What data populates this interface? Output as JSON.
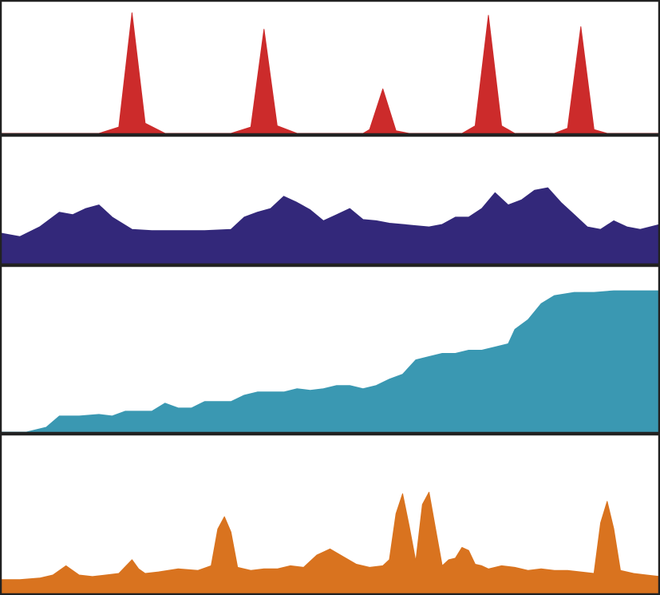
{
  "chart_data": [
    {
      "type": "area",
      "color": "#cc2b2b",
      "x": [
        0,
        5,
        10,
        15,
        18,
        20,
        22,
        25,
        28,
        30,
        35,
        38,
        40,
        42,
        45,
        48,
        50,
        55,
        56,
        58,
        60,
        62,
        65,
        70,
        72,
        74,
        76,
        78,
        80,
        84,
        86,
        88,
        90,
        92,
        95,
        100
      ],
      "y": [
        0,
        0,
        0,
        0,
        5,
        95,
        8,
        0,
        0,
        0,
        0,
        5,
        82,
        6,
        0,
        0,
        0,
        0,
        3,
        35,
        2,
        0,
        0,
        0,
        6,
        93,
        6,
        0,
        0,
        0,
        4,
        84,
        3,
        0,
        0,
        0
      ],
      "ylim": [
        0,
        100
      ]
    },
    {
      "type": "area",
      "color": "#33287a",
      "x": [
        0,
        3,
        6,
        9,
        11,
        13,
        15,
        17,
        20,
        23,
        27,
        31,
        35,
        37,
        39,
        41,
        43,
        45,
        47,
        49,
        51,
        53,
        55,
        57,
        59,
        61,
        63,
        65,
        67,
        69,
        71,
        73,
        75,
        77,
        79,
        81,
        83,
        85,
        87,
        89,
        91,
        93,
        95,
        97,
        100
      ],
      "y": [
        25,
        22,
        30,
        42,
        40,
        45,
        48,
        38,
        28,
        27,
        27,
        27,
        28,
        38,
        42,
        45,
        55,
        50,
        44,
        35,
        40,
        45,
        36,
        35,
        33,
        32,
        31,
        30,
        32,
        38,
        38,
        45,
        58,
        48,
        52,
        60,
        62,
        50,
        40,
        30,
        28,
        35,
        30,
        28,
        32
      ],
      "ylim": [
        0,
        100
      ]
    },
    {
      "type": "area",
      "color": "#3a98b2",
      "x": [
        0,
        4,
        7,
        9,
        12,
        15,
        17,
        19,
        21,
        23,
        25,
        27,
        29,
        31,
        33,
        35,
        37,
        39,
        41,
        43,
        45,
        47,
        49,
        51,
        53,
        55,
        57,
        59,
        61,
        63,
        65,
        67,
        69,
        71,
        73,
        75,
        77,
        78,
        80,
        82,
        84,
        87,
        90,
        93,
        96,
        100
      ],
      "y": [
        0,
        0,
        3,
        10,
        10,
        11,
        10,
        13,
        13,
        13,
        18,
        15,
        15,
        19,
        19,
        19,
        23,
        25,
        25,
        25,
        27,
        26,
        27,
        29,
        29,
        27,
        29,
        33,
        36,
        45,
        47,
        49,
        49,
        51,
        51,
        53,
        55,
        64,
        70,
        80,
        85,
        87,
        87,
        88,
        88,
        88
      ],
      "ylim": [
        0,
        100
      ]
    },
    {
      "type": "area",
      "color": "#d9731f",
      "x": [
        0,
        3,
        6,
        8,
        10,
        12,
        14,
        16,
        18,
        20,
        21,
        22,
        24,
        27,
        30,
        32,
        33,
        34,
        35,
        36,
        38,
        40,
        42,
        44,
        46,
        48,
        49,
        50,
        52,
        54,
        56,
        58,
        59,
        60,
        61,
        62,
        63,
        64,
        65,
        66,
        67,
        68,
        69,
        70,
        71,
        72,
        73,
        74,
        76,
        78,
        80,
        82,
        84,
        86,
        88,
        90,
        91,
        92,
        93,
        94,
        96,
        98,
        100
      ],
      "y": [
        9,
        9,
        10,
        12,
        18,
        12,
        11,
        12,
        13,
        22,
        16,
        13,
        14,
        16,
        15,
        18,
        42,
        50,
        40,
        17,
        15,
        16,
        16,
        18,
        17,
        25,
        27,
        29,
        24,
        19,
        17,
        18,
        22,
        52,
        65,
        44,
        21,
        58,
        66,
        42,
        18,
        22,
        23,
        30,
        28,
        19,
        18,
        16,
        18,
        17,
        15,
        16,
        15,
        15,
        14,
        13,
        46,
        60,
        42,
        15,
        13,
        12,
        11
      ],
      "ylim": [
        0,
        100
      ]
    }
  ]
}
